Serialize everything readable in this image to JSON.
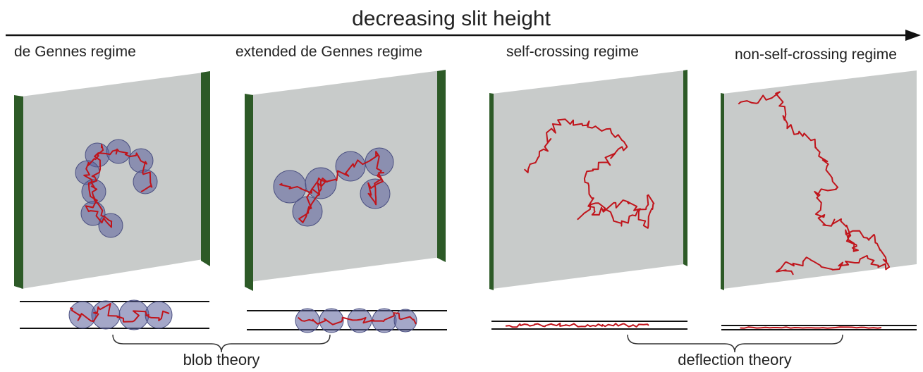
{
  "header": {
    "title": "decreasing slit height"
  },
  "panels": [
    {
      "label": "de Gennes regime"
    },
    {
      "label": "extended de Gennes regime"
    },
    {
      "label": "self-crossing regime"
    },
    {
      "label": "non-self-crossing regime"
    }
  ],
  "groups": [
    {
      "label": "blob theory"
    },
    {
      "label": "deflection theory"
    }
  ]
}
